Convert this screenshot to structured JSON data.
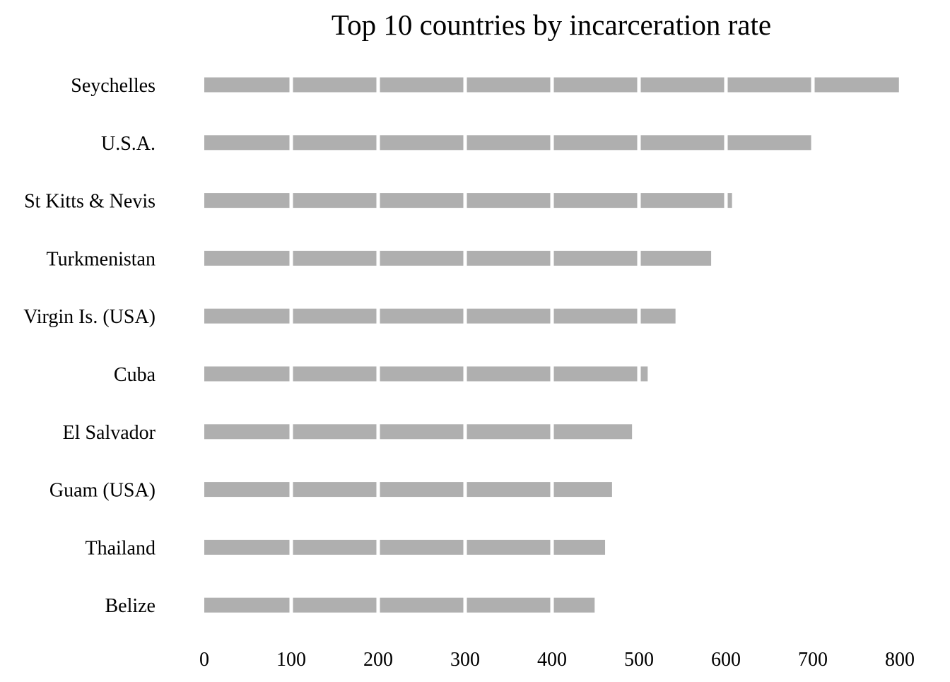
{
  "chart_data": {
    "type": "bar",
    "orientation": "horizontal",
    "title": "Top 10 countries by incarceration rate",
    "xlabel": "",
    "ylabel": "",
    "categories": [
      "Seychelles",
      "U.S.A.",
      "St Kitts & Nevis",
      "Turkmenistan",
      "Virgin Is. (USA)",
      "Cuba",
      "El Salvador",
      "Guam (USA)",
      "Thailand",
      "Belize"
    ],
    "values": [
      799,
      698,
      607,
      583,
      542,
      510,
      492,
      469,
      461,
      449
    ],
    "xlim": [
      0,
      800
    ],
    "xticks": [
      "0",
      "100",
      "200",
      "300",
      "400",
      "500",
      "600",
      "700",
      "800"
    ],
    "segment_size": 100,
    "grid": false,
    "legend": "none",
    "colors": {
      "bar": "#afafaf",
      "gap": "#ffffff",
      "text": "#000000"
    }
  }
}
